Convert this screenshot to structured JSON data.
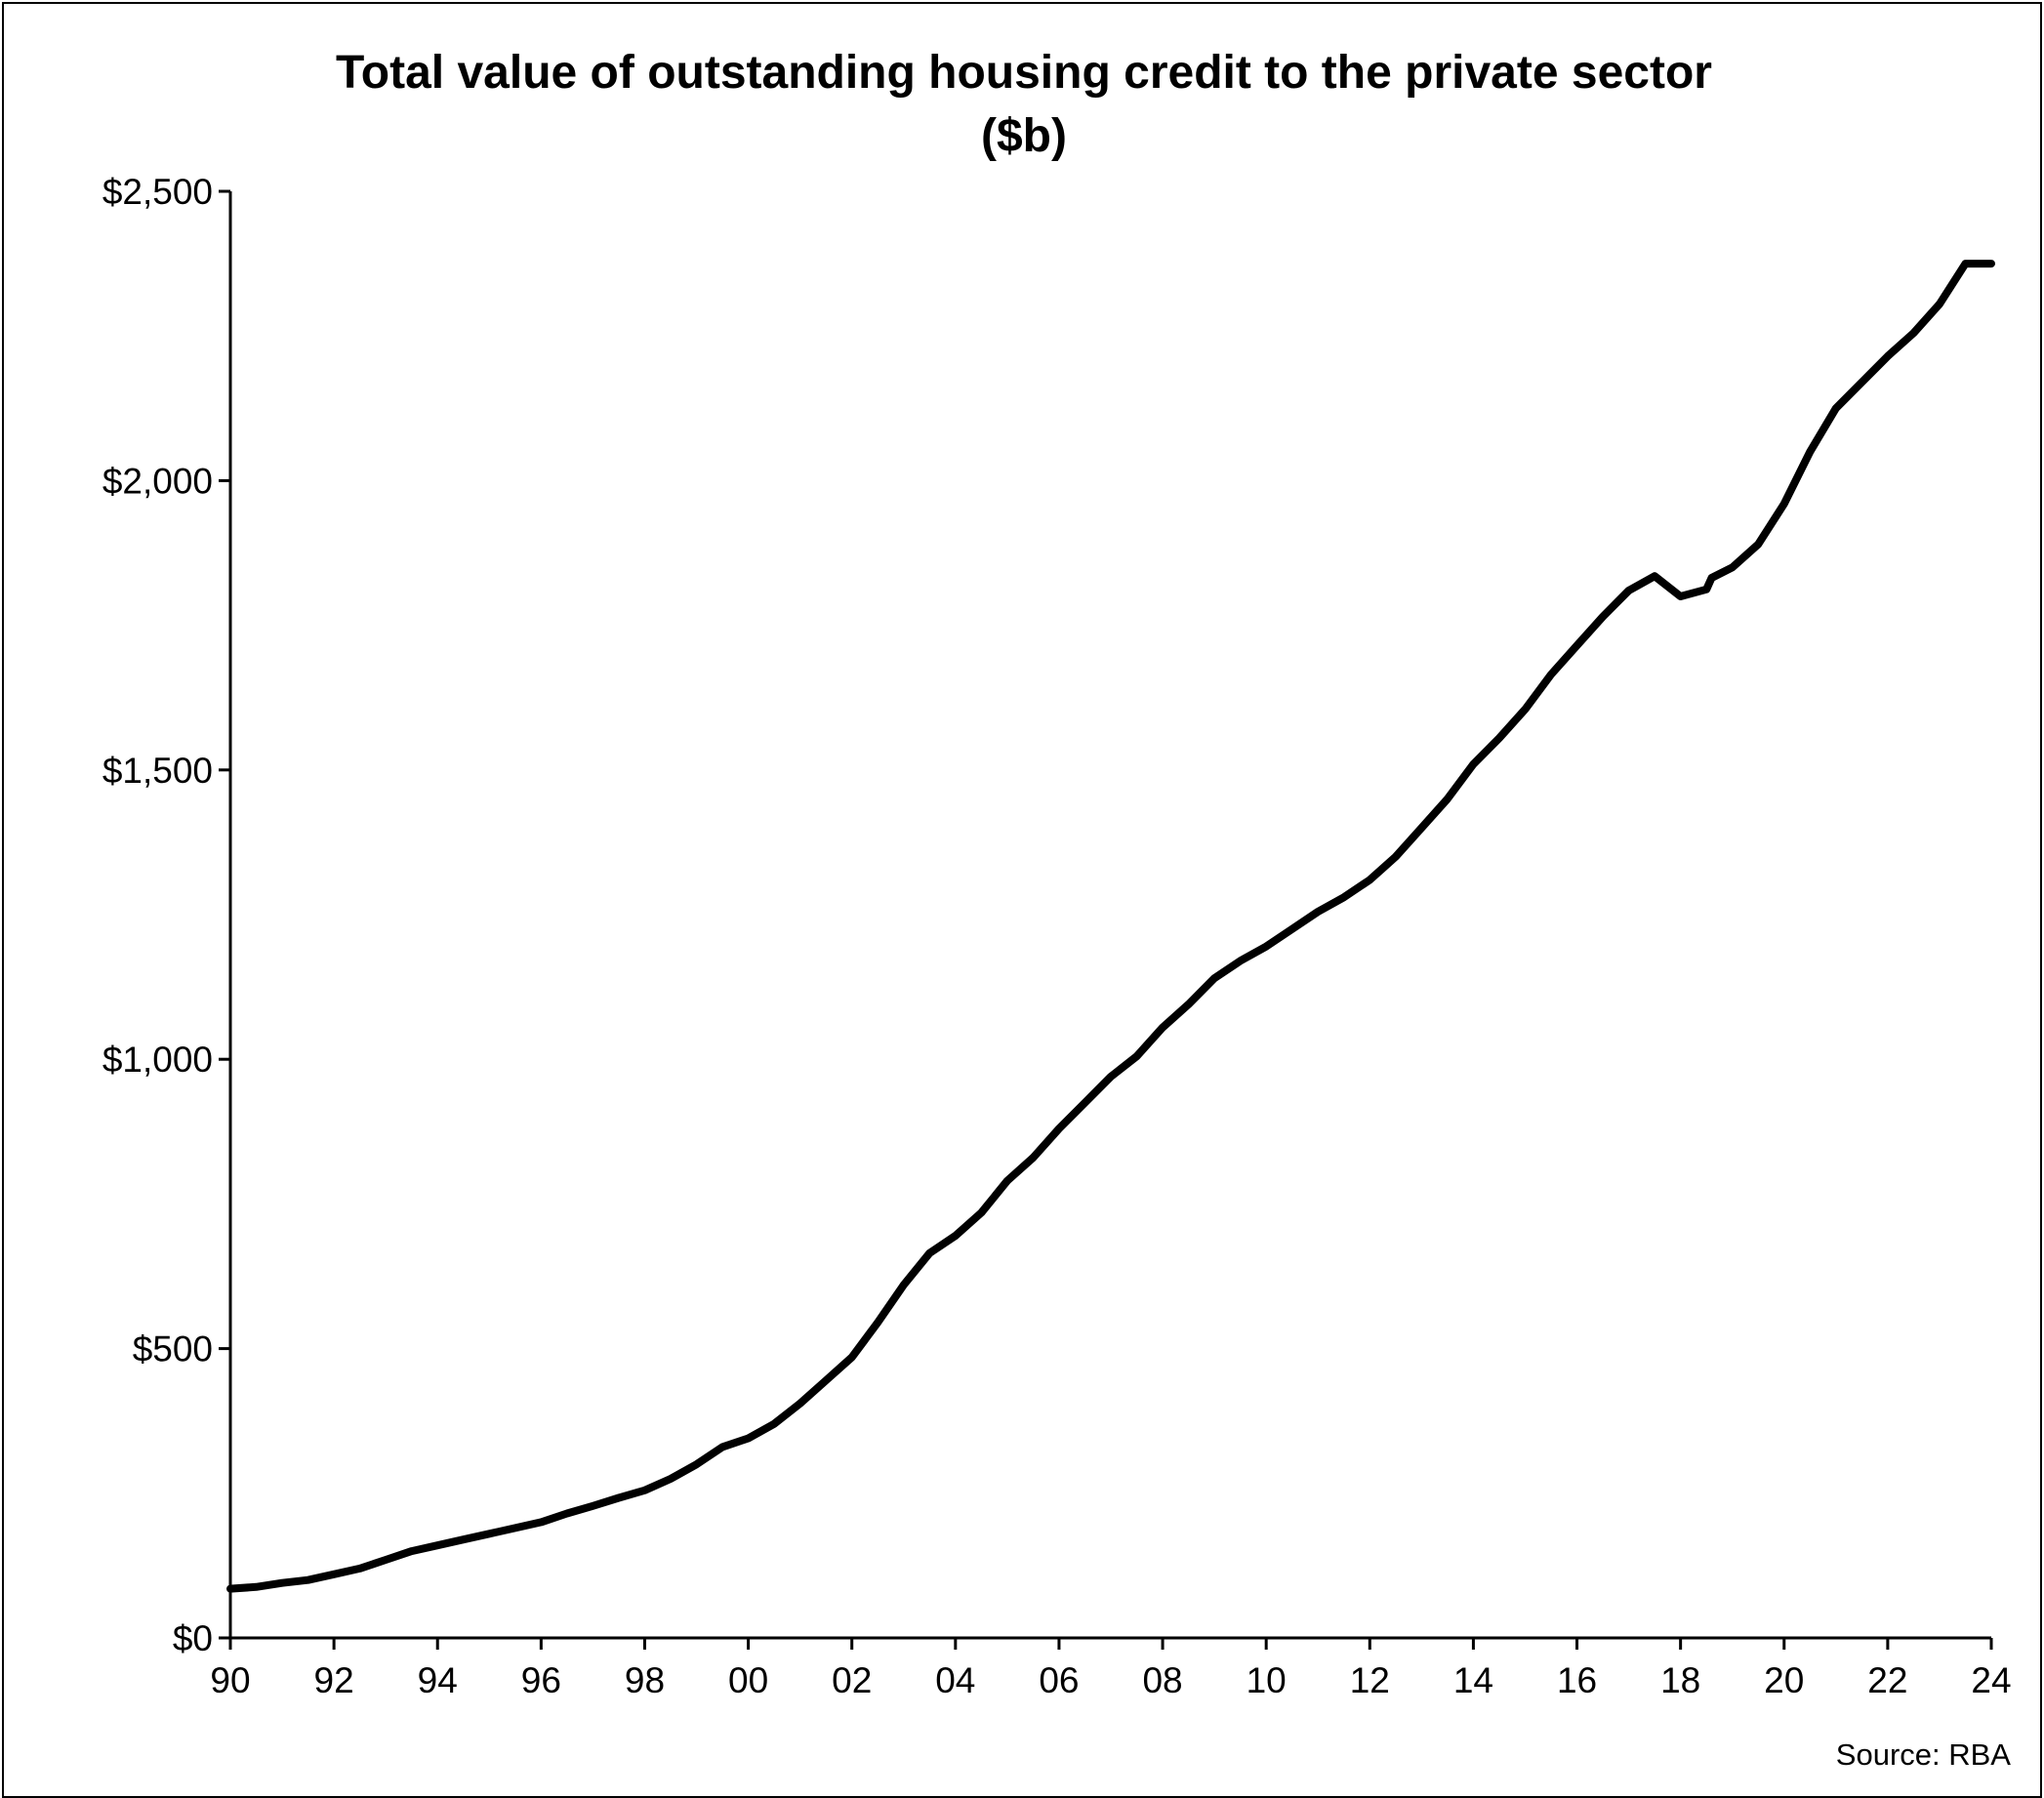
{
  "chart_data": {
    "type": "line",
    "title": "Total value of outstanding housing credit to the private sector",
    "subtitle": "($b)",
    "source": "Source: RBA",
    "xlabel": "",
    "ylabel": "",
    "xlim": [
      1990,
      2024
    ],
    "ylim": [
      0,
      2500
    ],
    "grid": false,
    "legend": "none",
    "line_color": "#000000",
    "y_ticks": [
      {
        "value": 0,
        "label": "$0"
      },
      {
        "value": 500,
        "label": "$500"
      },
      {
        "value": 1000,
        "label": "$1,000"
      },
      {
        "value": 1500,
        "label": "$1,500"
      },
      {
        "value": 2000,
        "label": "$2,000"
      },
      {
        "value": 2500,
        "label": "$2,500"
      }
    ],
    "x_ticks": [
      {
        "value": 1990,
        "label": "90"
      },
      {
        "value": 1992,
        "label": "92"
      },
      {
        "value": 1994,
        "label": "94"
      },
      {
        "value": 1996,
        "label": "96"
      },
      {
        "value": 1998,
        "label": "98"
      },
      {
        "value": 2000,
        "label": "00"
      },
      {
        "value": 2002,
        "label": "02"
      },
      {
        "value": 2004,
        "label": "04"
      },
      {
        "value": 2006,
        "label": "06"
      },
      {
        "value": 2008,
        "label": "08"
      },
      {
        "value": 2010,
        "label": "10"
      },
      {
        "value": 2012,
        "label": "12"
      },
      {
        "value": 2014,
        "label": "14"
      },
      {
        "value": 2016,
        "label": "16"
      },
      {
        "value": 2018,
        "label": "18"
      },
      {
        "value": 2020,
        "label": "20"
      },
      {
        "value": 2022,
        "label": "22"
      },
      {
        "value": 2024,
        "label": "24"
      }
    ],
    "series": [
      {
        "x": [
          1990.0,
          1990.5,
          1991.0,
          1991.5,
          1992.0,
          1992.5,
          1993.0,
          1993.5,
          1994.0,
          1994.5,
          1995.0,
          1995.5,
          1996.0,
          1996.5,
          1997.0,
          1997.5,
          1998.0,
          1998.5,
          1999.0,
          1999.5,
          2000.0,
          2000.5,
          2001.0,
          2001.5,
          2002.0,
          2002.5,
          2003.0,
          2003.5,
          2004.0,
          2004.5,
          2005.0,
          2005.5,
          2006.0,
          2006.5,
          2007.0,
          2007.5,
          2008.0,
          2008.5,
          2009.0,
          2009.5,
          2010.0,
          2010.5,
          2011.0,
          2011.5,
          2012.0,
          2012.5,
          2013.0,
          2013.5,
          2014.0,
          2014.5,
          2015.0,
          2015.5,
          2016.0,
          2016.5,
          2017.0,
          2017.5,
          2018.0,
          2018.5,
          2018.6,
          2019.0,
          2019.5,
          2020.0,
          2020.5,
          2021.0,
          2021.5,
          2022.0,
          2022.5,
          2023.0,
          2023.5,
          2024.0
        ],
        "y": [
          85,
          88,
          95,
          100,
          110,
          120,
          135,
          150,
          160,
          170,
          180,
          190,
          200,
          215,
          228,
          242,
          255,
          275,
          300,
          330,
          345,
          370,
          405,
          445,
          485,
          545,
          610,
          665,
          695,
          735,
          790,
          830,
          880,
          925,
          970,
          1005,
          1055,
          1095,
          1140,
          1170,
          1195,
          1225,
          1255,
          1280,
          1310,
          1350,
          1400,
          1450,
          1510,
          1555,
          1605,
          1665,
          1715,
          1765,
          1810,
          1835,
          1800,
          1812,
          1832,
          1850,
          1890,
          1960,
          2050,
          2125,
          2170,
          2215,
          2255,
          2305,
          2375,
          2375
        ]
      }
    ]
  }
}
